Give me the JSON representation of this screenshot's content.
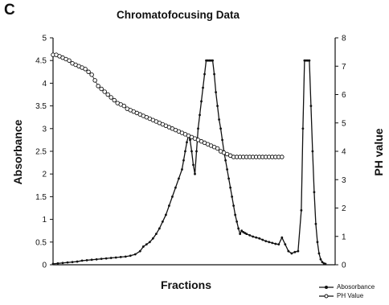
{
  "panel_label": "C",
  "chart_data": {
    "type": "line",
    "title": "Chromatofocusing Data",
    "xlabel": "Fractions",
    "ylabel_left": "Absorbance",
    "ylabel_right": "PH value",
    "y_left_lim": [
      0,
      5
    ],
    "y_left_ticks": [
      "0",
      "0.5",
      "1",
      "1.5",
      "2",
      "2.5",
      "3",
      "3.5",
      "4",
      "4.5",
      "5"
    ],
    "y_right_lim": [
      0,
      8
    ],
    "y_right_ticks": [
      "0",
      "1",
      "2",
      "3",
      "4",
      "5",
      "6",
      "7",
      "8"
    ],
    "grid": false,
    "legend_position": "bottom-right",
    "series": [
      {
        "name": "Abosorbance",
        "axis": "left",
        "color": "#111111",
        "marker": "filled-dot",
        "x": [
          0,
          3,
          6,
          9,
          12,
          15,
          18,
          21,
          24,
          27,
          30,
          33,
          36,
          39,
          42,
          45,
          48,
          51,
          54,
          56,
          58,
          60,
          62,
          64,
          66,
          68,
          70,
          72,
          74,
          76,
          78,
          80,
          81,
          82,
          83,
          84,
          85,
          86,
          87,
          88,
          89,
          90,
          91,
          92,
          93,
          94,
          95,
          96,
          97,
          98,
          99,
          100,
          101,
          102,
          103,
          104,
          105,
          106,
          107,
          108,
          109,
          110,
          111,
          112,
          113,
          114,
          115,
          116,
          117,
          118,
          119,
          120,
          122,
          124,
          126,
          128,
          130,
          132,
          134,
          136,
          138,
          140,
          142,
          144,
          146,
          148,
          150,
          152,
          154,
          155,
          156,
          157,
          158,
          159,
          160,
          161,
          162,
          163,
          164,
          165,
          166,
          167,
          168,
          169
        ],
        "values": [
          0.02,
          0.03,
          0.04,
          0.05,
          0.06,
          0.07,
          0.09,
          0.1,
          0.11,
          0.12,
          0.13,
          0.14,
          0.15,
          0.16,
          0.17,
          0.18,
          0.2,
          0.23,
          0.3,
          0.4,
          0.45,
          0.5,
          0.58,
          0.68,
          0.8,
          0.95,
          1.1,
          1.3,
          1.5,
          1.7,
          1.9,
          2.1,
          2.3,
          2.5,
          2.7,
          2.85,
          2.75,
          2.5,
          2.2,
          2.0,
          2.5,
          3.0,
          3.3,
          3.6,
          3.9,
          4.2,
          4.5,
          4.5,
          4.5,
          4.5,
          4.5,
          4.2,
          3.8,
          3.5,
          3.2,
          3.0,
          2.75,
          2.5,
          2.3,
          2.1,
          1.9,
          1.7,
          1.5,
          1.3,
          1.1,
          0.95,
          0.8,
          0.68,
          0.75,
          0.72,
          0.7,
          0.68,
          0.65,
          0.62,
          0.6,
          0.58,
          0.55,
          0.52,
          0.5,
          0.48,
          0.46,
          0.45,
          0.6,
          0.45,
          0.3,
          0.25,
          0.28,
          0.3,
          1.2,
          3.0,
          4.5,
          4.5,
          4.5,
          4.5,
          3.5,
          2.5,
          1.6,
          0.9,
          0.5,
          0.25,
          0.12,
          0.06,
          0.03,
          0.02
        ]
      },
      {
        "name": "PH Value",
        "axis": "right",
        "color": "#111111",
        "marker": "open-circle",
        "x": [
          0,
          2,
          4,
          6,
          8,
          10,
          12,
          14,
          16,
          18,
          20,
          22,
          24,
          26,
          28,
          30,
          32,
          34,
          36,
          38,
          40,
          42,
          44,
          46,
          48,
          50,
          52,
          54,
          56,
          58,
          60,
          62,
          64,
          66,
          68,
          70,
          72,
          74,
          76,
          78,
          80,
          82,
          84,
          86,
          88,
          90,
          92,
          94,
          96,
          98,
          100,
          102,
          104,
          106,
          108,
          110,
          112,
          114,
          116,
          118,
          120,
          122,
          124,
          126,
          128,
          130,
          132,
          134,
          136,
          138,
          140,
          142
        ],
        "values": [
          7.4,
          7.4,
          7.35,
          7.3,
          7.25,
          7.2,
          7.1,
          7.05,
          7.0,
          6.95,
          6.9,
          6.8,
          6.7,
          6.5,
          6.3,
          6.2,
          6.1,
          6.0,
          5.9,
          5.8,
          5.7,
          5.65,
          5.6,
          5.5,
          5.45,
          5.4,
          5.35,
          5.3,
          5.25,
          5.2,
          5.15,
          5.1,
          5.05,
          5.0,
          4.95,
          4.9,
          4.85,
          4.8,
          4.75,
          4.7,
          4.65,
          4.6,
          4.55,
          4.5,
          4.45,
          4.4,
          4.35,
          4.3,
          4.25,
          4.2,
          4.15,
          4.1,
          4.0,
          3.95,
          3.9,
          3.85,
          3.8,
          3.8,
          3.8,
          3.8,
          3.8,
          3.8,
          3.8,
          3.8,
          3.8,
          3.8,
          3.8,
          3.8,
          3.8,
          3.8,
          3.8,
          3.8
        ]
      }
    ]
  }
}
